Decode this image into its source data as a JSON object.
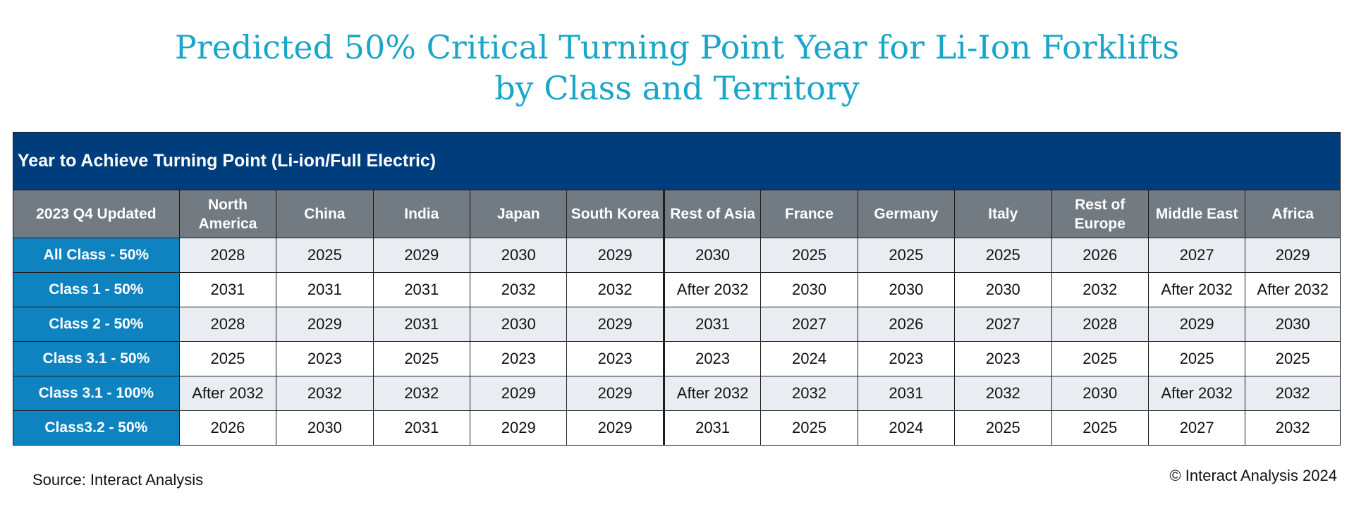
{
  "chart_data": {
    "type": "table",
    "title_line1": "Predicted 50% Critical Turning Point Year for Li-Ion Forklifts",
    "title_line2": "by Class and Territory",
    "banner": "Year to Achieve Turning Point (Li-ion/Full Electric)",
    "corner_label": "2023 Q4 Updated",
    "columns": [
      "North America",
      "China",
      "India",
      "Japan",
      "South Korea",
      "Rest of Asia",
      "France",
      "Germany",
      "Italy",
      "Rest of Europe",
      "Middle East",
      "Africa"
    ],
    "rows": [
      {
        "label": "All Class - 50%",
        "values": [
          "2028",
          "2025",
          "2029",
          "2030",
          "2029",
          "2030",
          "2025",
          "2025",
          "2025",
          "2026",
          "2027",
          "2029"
        ]
      },
      {
        "label": "Class 1 - 50%",
        "values": [
          "2031",
          "2031",
          "2031",
          "2032",
          "2032",
          "After 2032",
          "2030",
          "2030",
          "2030",
          "2032",
          "After 2032",
          "After 2032"
        ]
      },
      {
        "label": "Class 2 - 50%",
        "values": [
          "2028",
          "2029",
          "2031",
          "2030",
          "2029",
          "2031",
          "2027",
          "2026",
          "2027",
          "2028",
          "2029",
          "2030"
        ]
      },
      {
        "label": "Class 3.1 - 50%",
        "values": [
          "2025",
          "2023",
          "2025",
          "2023",
          "2023",
          "2023",
          "2024",
          "2023",
          "2023",
          "2025",
          "2025",
          "2025"
        ]
      },
      {
        "label": "Class 3.1 - 100%",
        "values": [
          "After 2032",
          "2032",
          "2032",
          "2029",
          "2029",
          "After 2032",
          "2032",
          "2031",
          "2032",
          "2030",
          "After 2032",
          "2032"
        ]
      },
      {
        "label": "Class3.2 - 50%",
        "values": [
          "2026",
          "2030",
          "2031",
          "2029",
          "2029",
          "2031",
          "2025",
          "2024",
          "2025",
          "2025",
          "2027",
          "2032"
        ]
      }
    ]
  },
  "footer": {
    "source": "Source: Interact Analysis",
    "copyright": "© Interact Analysis 2024"
  },
  "colors": {
    "title": "#1aa6c9",
    "banner_bg": "#003d7d",
    "header_bg": "#727a82",
    "row_label_bg": "#0e83bf",
    "stripe_bg": "#e9edf2"
  }
}
